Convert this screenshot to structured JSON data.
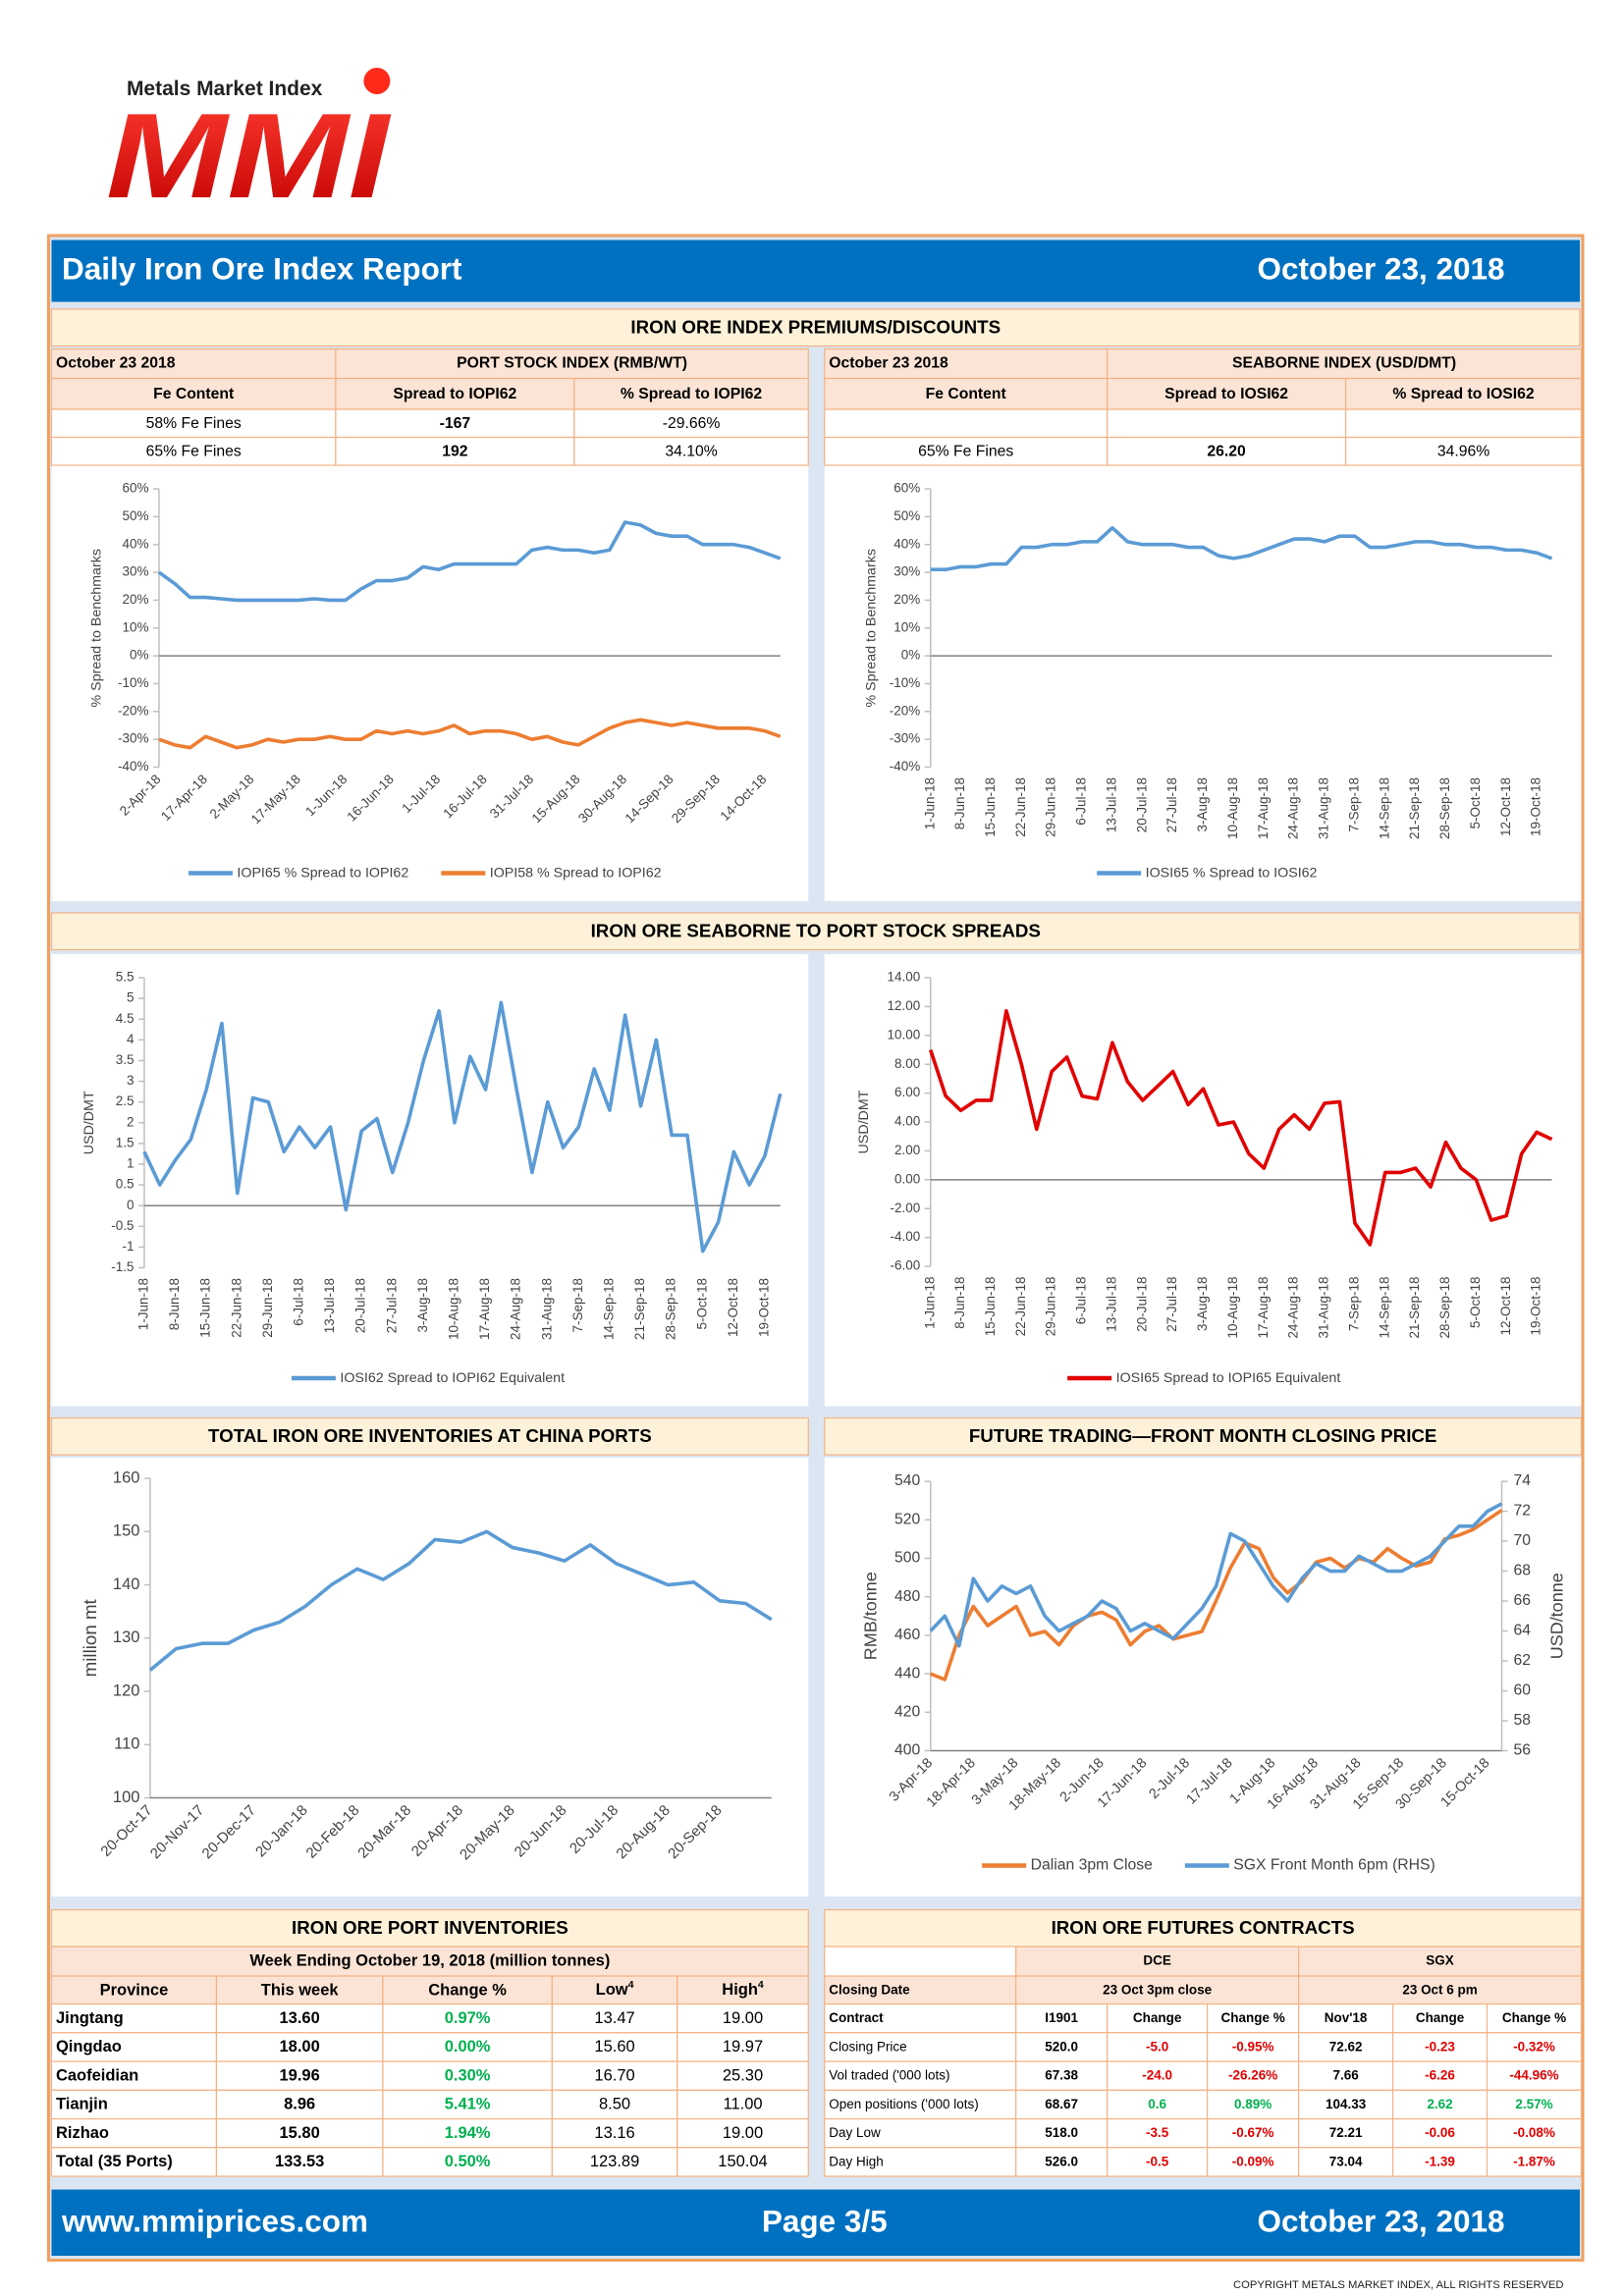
{
  "logo": {
    "tagline": "Metals Market Index",
    "name": "MMI"
  },
  "header": {
    "title": "Daily Iron Ore Index Report",
    "date": "October 23, 2018"
  },
  "premiums": {
    "title": "IRON ORE INDEX PREMIUMS/DISCOUNTS",
    "port_table": {
      "date": "October 23 2018",
      "index": "PORT STOCK INDEX (RMB/WT)",
      "columns": [
        "Fe Content",
        "Spread to IOPI62",
        "% Spread to IOPI62"
      ],
      "rows": [
        [
          "58% Fe Fines",
          "-167",
          "-29.66%"
        ],
        [
          "65% Fe Fines",
          "192",
          "34.10%"
        ]
      ]
    },
    "seaborne_table": {
      "date": "October 23 2018",
      "index": "SEABORNE INDEX (USD/DMT)",
      "columns": [
        "Fe Content",
        "Spread to IOSI62",
        "% Spread to IOSI62"
      ],
      "rows": [
        [
          "65% Fe Fines",
          "26.20",
          "34.96%"
        ]
      ]
    }
  },
  "spreads": {
    "title": "IRON ORE SEABORNE TO PORT STOCK SPREADS"
  },
  "inventories_title": "TOTAL IRON ORE INVENTORIES AT CHINA PORTS",
  "futures_title": "FUTURE TRADING—FRONT MONTH CLOSING PRICE",
  "chart_data": [
    {
      "type": "line",
      "y_label": "% Spread to Benchmarks",
      "categories": [
        "2-Apr-18",
        null,
        null,
        "17-Apr-18",
        null,
        null,
        "2-May-18",
        null,
        null,
        "17-May-18",
        null,
        null,
        "1-Jun-18",
        null,
        null,
        "16-Jun-18",
        null,
        null,
        "1-Jul-18",
        null,
        null,
        "16-Jul-18",
        null,
        null,
        "31-Jul-18",
        null,
        null,
        "15-Aug-18",
        null,
        null,
        "30-Aug-18",
        null,
        null,
        "14-Sep-18",
        null,
        null,
        "29-Sep-18",
        null,
        null,
        "14-Oct-18",
        null
      ],
      "series": [
        {
          "name": "IOPI65 % Spread to IOPI62",
          "color": "#5b9bd5",
          "values": [
            30,
            26,
            21,
            21,
            20.5,
            20,
            20,
            20,
            20,
            20,
            20.5,
            20,
            20,
            24,
            27,
            27,
            28,
            32,
            31,
            33,
            33,
            33,
            33,
            33,
            38,
            39,
            38,
            38,
            37,
            38,
            48,
            47,
            44,
            43,
            43,
            40,
            40,
            40,
            39,
            37,
            35
          ]
        },
        {
          "name": "IOPI58 % Spread to IOPI62",
          "color": "#ed7d31",
          "values": [
            -30,
            -32,
            -33,
            -29,
            -31,
            -33,
            -32,
            -30,
            -31,
            -30,
            -30,
            -29,
            -30,
            -30,
            -27,
            -28,
            -27,
            -28,
            -27,
            -25,
            -28,
            -27,
            -27,
            -28,
            -30,
            -29,
            -31,
            -32,
            -29,
            -26,
            -24,
            -23,
            -24,
            -25,
            -24,
            -25,
            -26,
            -26,
            -26,
            -27,
            -29
          ]
        }
      ],
      "ylim": [
        -40,
        60
      ],
      "yticks": [
        {
          "value": -40,
          "label": "-40%"
        },
        {
          "value": -30,
          "label": "-30%"
        },
        {
          "value": -20,
          "label": "-20%"
        },
        {
          "value": -10,
          "label": "-10%"
        },
        {
          "value": 0,
          "label": "0%"
        },
        {
          "value": 10,
          "label": "10%"
        },
        {
          "value": 20,
          "label": "20%"
        },
        {
          "value": 30,
          "label": "30%"
        },
        {
          "value": 40,
          "label": "40%"
        },
        {
          "value": 50,
          "label": "50%"
        },
        {
          "value": 60,
          "label": "60%"
        }
      ]
    },
    {
      "type": "line",
      "y_label": "% Spread to Benchmarks",
      "categories": [
        "1-Jun-18",
        null,
        "8-Jun-18",
        null,
        "15-Jun-18",
        null,
        "22-Jun-18",
        null,
        "29-Jun-18",
        null,
        "6-Jul-18",
        null,
        "13-Jul-18",
        null,
        "20-Jul-18",
        null,
        "27-Jul-18",
        null,
        "3-Aug-18",
        null,
        "10-Aug-18",
        null,
        "17-Aug-18",
        null,
        "24-Aug-18",
        null,
        "31-Aug-18",
        null,
        "7-Sep-18",
        null,
        "14-Sep-18",
        null,
        "21-Sep-18",
        null,
        "28-Sep-18",
        null,
        "5-Oct-18",
        null,
        "12-Oct-18",
        null,
        "19-Oct-18",
        null
      ],
      "series": [
        {
          "name": "IOSI65 % Spread to IOSI62",
          "color": "#5b9bd5",
          "values": [
            31,
            31,
            32,
            32,
            33,
            33,
            39,
            39,
            40,
            40,
            41,
            41,
            46,
            41,
            40,
            40,
            40,
            39,
            39,
            36,
            35,
            36,
            38,
            40,
            42,
            42,
            41,
            43,
            43,
            39,
            39,
            40,
            41,
            41,
            40,
            40,
            39,
            39,
            38,
            38,
            37,
            35
          ]
        }
      ],
      "ylim": [
        -40,
        60
      ],
      "yticks": [
        {
          "value": -40,
          "label": "-40%"
        },
        {
          "value": -30,
          "label": "-30%"
        },
        {
          "value": -20,
          "label": "-20%"
        },
        {
          "value": -10,
          "label": "-10%"
        },
        {
          "value": 0,
          "label": "0%"
        },
        {
          "value": 10,
          "label": "10%"
        },
        {
          "value": 20,
          "label": "20%"
        },
        {
          "value": 30,
          "label": "30%"
        },
        {
          "value": 40,
          "label": "40%"
        },
        {
          "value": 50,
          "label": "50%"
        },
        {
          "value": 60,
          "label": "60%"
        }
      ]
    },
    {
      "type": "line",
      "y_label": "USD/DMT",
      "categories": [
        "1-Jun-18",
        null,
        "8-Jun-18",
        null,
        "15-Jun-18",
        null,
        "22-Jun-18",
        null,
        "29-Jun-18",
        null,
        "6-Jul-18",
        null,
        "13-Jul-18",
        null,
        "20-Jul-18",
        null,
        "27-Jul-18",
        null,
        "3-Aug-18",
        null,
        "10-Aug-18",
        null,
        "17-Aug-18",
        null,
        "24-Aug-18",
        null,
        "31-Aug-18",
        null,
        "7-Sep-18",
        null,
        "14-Sep-18",
        null,
        "21-Sep-18",
        null,
        "28-Sep-18",
        null,
        "5-Oct-18",
        null,
        "12-Oct-18",
        null,
        "19-Oct-18",
        null
      ],
      "series": [
        {
          "name": "IOSI62 Spread to IOPI62 Equivalent",
          "color": "#5b9bd5",
          "values": [
            1.3,
            0.5,
            1.1,
            1.6,
            2.8,
            4.4,
            0.3,
            2.6,
            2.5,
            1.3,
            1.9,
            1.4,
            1.9,
            -0.1,
            1.8,
            2.1,
            0.8,
            2.0,
            3.5,
            4.7,
            2.0,
            3.6,
            2.8,
            4.9,
            2.8,
            0.8,
            2.5,
            1.4,
            1.9,
            3.3,
            2.3,
            4.6,
            2.4,
            4.0,
            1.7,
            1.7,
            -1.1,
            -0.4,
            1.3,
            0.5,
            1.2,
            2.7
          ]
        }
      ],
      "ylim": [
        -1.5,
        5.5
      ],
      "yticks": [
        -1.5,
        -1,
        -0.5,
        0,
        0.5,
        1,
        1.5,
        2,
        2.5,
        3,
        3.5,
        4,
        4.5,
        5,
        5.5
      ]
    },
    {
      "type": "line",
      "y_label": "USD/DMT",
      "categories": [
        "1-Jun-18",
        null,
        "8-Jun-18",
        null,
        "15-Jun-18",
        null,
        "22-Jun-18",
        null,
        "29-Jun-18",
        null,
        "6-Jul-18",
        null,
        "13-Jul-18",
        null,
        "20-Jul-18",
        null,
        "27-Jul-18",
        null,
        "3-Aug-18",
        null,
        "10-Aug-18",
        null,
        "17-Aug-18",
        null,
        "24-Aug-18",
        null,
        "31-Aug-18",
        null,
        "7-Sep-18",
        null,
        "14-Sep-18",
        null,
        "21-Sep-18",
        null,
        "28-Sep-18",
        null,
        "5-Oct-18",
        null,
        "12-Oct-18",
        null,
        "19-Oct-18",
        null
      ],
      "series": [
        {
          "name": "IOSI65 Spread to IOPI65 Equivalent",
          "color": "#e00000",
          "values": [
            9.0,
            5.8,
            4.8,
            5.5,
            5.5,
            11.7,
            8.0,
            3.5,
            7.5,
            8.5,
            5.8,
            5.6,
            9.5,
            6.8,
            5.5,
            6.5,
            7.5,
            5.2,
            6.3,
            3.8,
            4.0,
            1.8,
            0.8,
            3.5,
            4.5,
            3.5,
            5.3,
            5.4,
            -3.0,
            -4.5,
            0.5,
            0.5,
            0.8,
            -0.5,
            2.6,
            0.8,
            0.0,
            -2.8,
            -2.5,
            1.8,
            3.3,
            2.8
          ]
        }
      ],
      "ylim": [
        -6,
        14
      ],
      "yticks": [
        {
          "value": -6,
          "label": "-6.00"
        },
        {
          "value": -4,
          "label": "-4.00"
        },
        {
          "value": -2,
          "label": "-2.00"
        },
        {
          "value": 0,
          "label": "0.00"
        },
        {
          "value": 2,
          "label": "2.00"
        },
        {
          "value": 4,
          "label": "4.00"
        },
        {
          "value": 6,
          "label": "6.00"
        },
        {
          "value": 8,
          "label": "8.00"
        },
        {
          "value": 10,
          "label": "10.00"
        },
        {
          "value": 12,
          "label": "12.00"
        },
        {
          "value": 14,
          "label": "14.00"
        }
      ]
    },
    {
      "type": "line",
      "y_label": "million mt",
      "categories": [
        "20-Oct-17",
        null,
        "20-Nov-17",
        null,
        "20-Dec-17",
        null,
        "20-Jan-18",
        null,
        "20-Feb-18",
        null,
        "20-Mar-18",
        null,
        "20-Apr-18",
        null,
        "20-May-18",
        null,
        "20-Jun-18",
        null,
        "20-Jul-18",
        null,
        "20-Aug-18",
        null,
        "20-Sep-18",
        null,
        null
      ],
      "series": [
        {
          "color": "#5b9bd5",
          "values": [
            124,
            128,
            129,
            129,
            131.5,
            133,
            136,
            140,
            143,
            141,
            144,
            148.5,
            148,
            150,
            147,
            146,
            144.5,
            147.5,
            144,
            142,
            140,
            140.5,
            137,
            136.5,
            133.5
          ]
        }
      ],
      "ylim": [
        100,
        160
      ],
      "yticks": [
        100,
        110,
        120,
        130,
        140,
        150,
        160
      ]
    },
    {
      "type": "line",
      "y_label": "RMB/tonne",
      "y2_label": "USD/tonne",
      "categories": [
        "3-Apr-18",
        null,
        null,
        "18-Apr-18",
        null,
        null,
        "3-May-18",
        null,
        null,
        "18-May-18",
        null,
        null,
        "2-Jun-18",
        null,
        null,
        "17-Jun-18",
        null,
        null,
        "2-Jul-18",
        null,
        null,
        "17-Jul-18",
        null,
        null,
        "1-Aug-18",
        null,
        null,
        "16-Aug-18",
        null,
        null,
        "31-Aug-18",
        null,
        null,
        "15-Sep-18",
        null,
        null,
        "30-Sep-18",
        null,
        null,
        "15-Oct-18",
        null
      ],
      "series": [
        {
          "name": "Dalian 3pm Close",
          "color": "#ed7d31",
          "values": [
            440,
            437,
            460,
            475,
            465,
            470,
            475,
            460,
            462,
            455,
            465,
            470,
            472,
            468,
            455,
            462,
            465,
            458,
            460,
            462,
            478,
            495,
            508,
            505,
            490,
            482,
            488,
            498,
            500,
            495,
            500,
            498,
            505,
            500,
            496,
            498,
            510,
            512,
            515,
            520,
            525
          ]
        },
        {
          "name": "SGX Front Month 6pm (RHS)",
          "color": "#5b9bd5",
          "axis": "y2",
          "values": [
            64,
            65,
            63,
            67.5,
            66,
            67,
            66.5,
            67,
            65,
            64,
            64.5,
            65,
            66,
            65.5,
            64,
            64.5,
            64,
            63.5,
            64.5,
            65.5,
            67,
            70.5,
            70,
            68.5,
            67,
            66,
            67.5,
            68.5,
            68,
            68,
            69,
            68.5,
            68,
            68,
            68.5,
            69,
            70,
            71,
            71,
            72,
            72.5
          ]
        }
      ],
      "ylim": [
        400,
        540
      ],
      "yticks": [
        400,
        420,
        440,
        460,
        480,
        500,
        520,
        540
      ],
      "y2lim": [
        56,
        74
      ],
      "y2ticks": [
        56,
        58,
        60,
        62,
        64,
        66,
        68,
        70,
        72,
        74
      ]
    }
  ],
  "port_inventories": {
    "title": "IRON ORE PORT INVENTORIES",
    "subtitle": "Week Ending October 19, 2018 (million tonnes)",
    "columns": [
      "Province",
      "This week",
      "Change %",
      {
        "text": "Low",
        "sup": "4"
      },
      {
        "text": "High",
        "sup": "4"
      }
    ],
    "rows": [
      [
        "Jingtang",
        "13.60",
        "0.97%",
        "13.47",
        "19.00"
      ],
      [
        "Qingdao",
        "18.00",
        "0.00%",
        "15.60",
        "19.97"
      ],
      [
        "Caofeidian",
        "19.96",
        "0.30%",
        "16.70",
        "25.30"
      ],
      [
        "Tianjin",
        "8.96",
        "5.41%",
        "8.50",
        "11.00"
      ],
      [
        "Rizhao",
        "15.80",
        "1.94%",
        "13.16",
        "19.00"
      ],
      [
        "Total (35 Ports)",
        "133.53",
        "0.50%",
        "123.89",
        "150.04"
      ]
    ]
  },
  "futures_contracts": {
    "title": "IRON ORE FUTURES CONTRACTS",
    "groups": [
      "DCE",
      "SGX"
    ],
    "closing_label": "Closing Date",
    "closing": [
      "23 Oct 3pm close",
      "23 Oct 6 pm"
    ],
    "contract_label": "Contract",
    "columns": [
      "I1901",
      "Change",
      "Change %",
      "Nov'18",
      "Change",
      "Change %"
    ],
    "rows": [
      {
        "label": "Closing Price",
        "values": [
          "520.0",
          "-5.0",
          "-0.95%",
          "72.62",
          "-0.23",
          "-0.32%"
        ]
      },
      {
        "label": "Vol traded ('000 lots)",
        "values": [
          "67.38",
          "-24.0",
          "-26.26%",
          "7.66",
          "-6.26",
          "-44.96%"
        ]
      },
      {
        "label": "Open positions ('000 lots)",
        "values": [
          "68.67",
          "0.6",
          "0.89%",
          "104.33",
          "2.62",
          "2.57%"
        ]
      },
      {
        "label": "Day Low",
        "values": [
          "518.0",
          "-3.5",
          "-0.67%",
          "72.21",
          "-0.06",
          "-0.08%"
        ]
      },
      {
        "label": "Day High",
        "values": [
          "526.0",
          "-0.5",
          "-0.09%",
          "73.04",
          "-1.39",
          "-1.87%"
        ]
      }
    ]
  },
  "footer": {
    "url": "www.mmiprices.com",
    "page": "Page 3/5",
    "date": "October 23, 2018",
    "copyright": "COPYRIGHT METALS MARKET INDEX, ALL RIGHTS RESERVED"
  }
}
